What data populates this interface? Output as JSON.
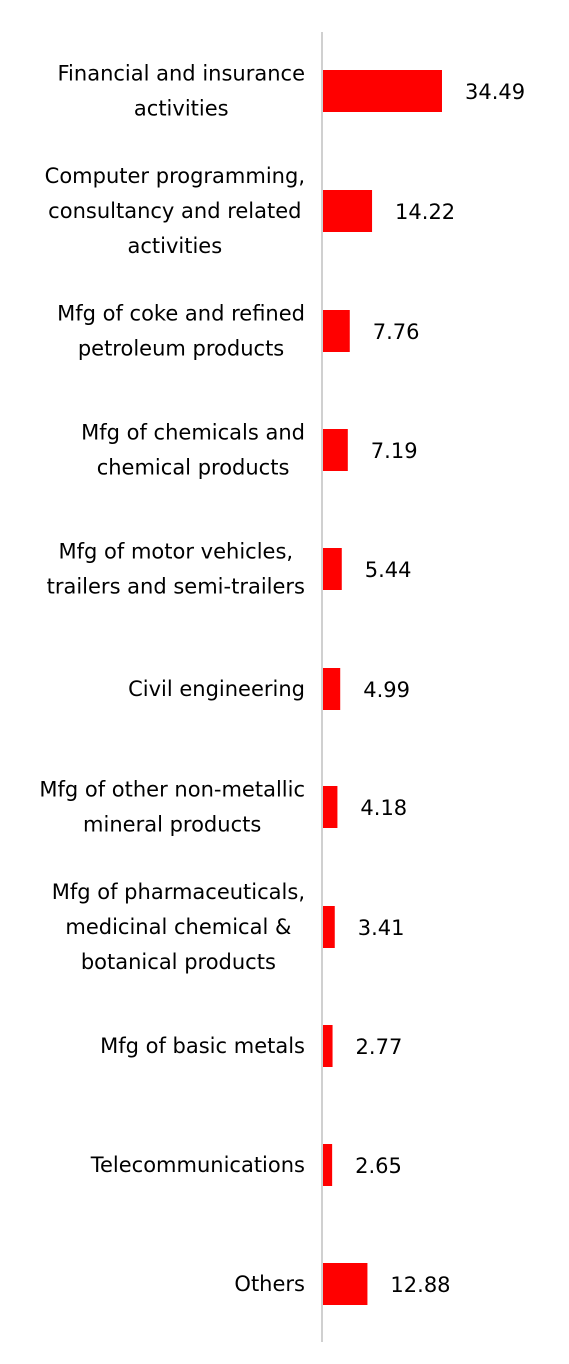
{
  "chart_data": {
    "type": "bar",
    "orientation": "horizontal",
    "categories": [
      [
        "Financial and insurance",
        "activities"
      ],
      [
        "Computer programming,",
        "consultancy and related",
        "activities"
      ],
      [
        "Mfg of coke and refined",
        "petroleum products"
      ],
      [
        "Mfg of chemicals and",
        "chemical products"
      ],
      [
        "Mfg of motor vehicles,",
        "trailers and semi-trailers"
      ],
      [
        "Civil engineering"
      ],
      [
        "Mfg of other non-metallic",
        "mineral products"
      ],
      [
        "Mfg of pharmaceuticals,",
        "medicinal chemical &",
        "botanical products"
      ],
      [
        "Mfg of basic metals"
      ],
      [
        "Telecommunications"
      ],
      [
        "Others"
      ]
    ],
    "values": [
      34.49,
      14.22,
      7.76,
      7.19,
      5.44,
      4.99,
      4.18,
      3.41,
      2.77,
      2.65,
      12.88
    ],
    "value_labels": [
      "34.49",
      "14.22",
      "7.76",
      "7.19",
      "5.44",
      "4.99",
      "4.18",
      "3.41",
      "2.77",
      "2.65",
      "12.88"
    ],
    "bar_color": "#ff0000",
    "axis_color": "#d0d0d0",
    "grid": false,
    "legend": "none"
  }
}
